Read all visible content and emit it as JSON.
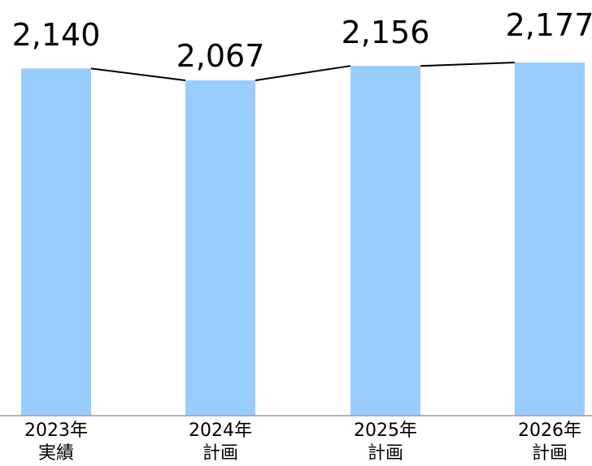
{
  "chart_data": {
    "type": "bar",
    "categories": [
      [
        "2023年",
        "実績"
      ],
      [
        "2024年",
        "計画"
      ],
      [
        "2025年",
        "計画"
      ],
      [
        "2026年",
        "計画"
      ]
    ],
    "values": [
      2140,
      2067,
      2156,
      2177
    ],
    "value_labels": [
      "2,140",
      "2,067",
      "2,156",
      "2,177"
    ],
    "ylim": [
      0,
      2177
    ],
    "grid": false,
    "legend": "none",
    "bar_color": "#99ccff",
    "connector_color": "#000000"
  }
}
